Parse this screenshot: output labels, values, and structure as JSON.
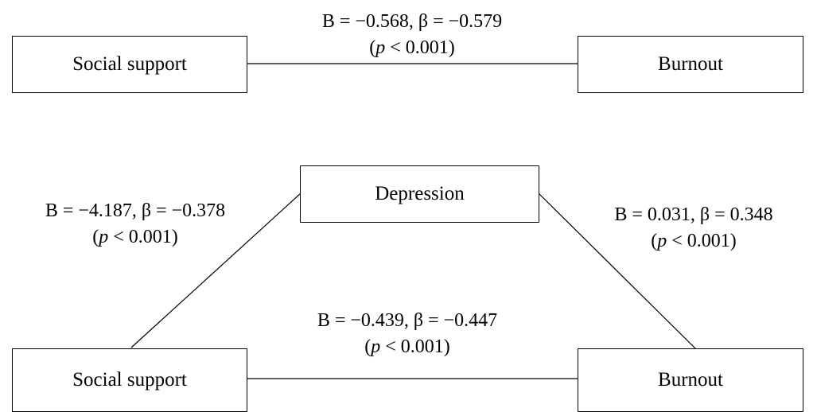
{
  "colors": {
    "line": "#000000",
    "box_border": "#000000",
    "background": "#ffffff",
    "text": "#000000"
  },
  "total_effect": {
    "predictor": "Social support",
    "outcome": "Burnout",
    "path": {
      "coef": "B = −0.568, β = −0.579",
      "p_var": "p",
      "p_rest": " < 0.001"
    }
  },
  "mediation": {
    "mediator": "Depression",
    "predictor": "Social support",
    "outcome": "Burnout",
    "path_a": {
      "coef": "B = −4.187, β = −0.378",
      "p_var": "p",
      "p_rest": " < 0.001"
    },
    "path_b": {
      "coef": "B = 0.031, β = 0.348",
      "p_var": "p",
      "p_rest": " < 0.001"
    },
    "path_c_prime": {
      "coef": "B = −0.439, β = −0.447",
      "p_var": "p",
      "p_rest": " < 0.001"
    }
  }
}
